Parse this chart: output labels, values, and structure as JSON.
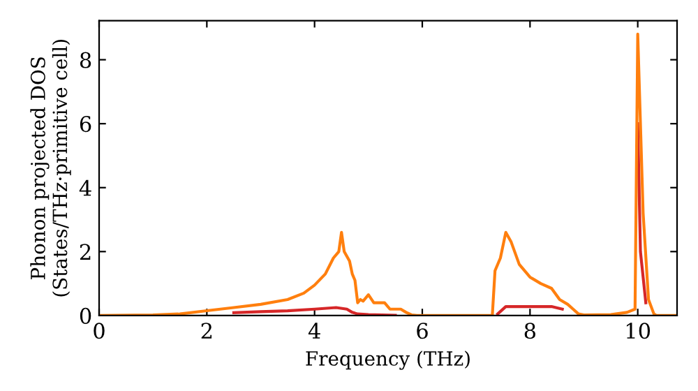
{
  "chart_data": {
    "type": "line",
    "xlabel": "Frequency (THz)",
    "ylabel": "Phonon projected DOS\n(States/THz·primitive cell)",
    "xlim": [
      0,
      10.73
    ],
    "ylim": [
      0,
      9.22
    ],
    "xticks": [
      0,
      2,
      4,
      6,
      8,
      10
    ],
    "yticks": [
      0,
      2,
      4,
      6,
      8
    ],
    "marker": "none",
    "line_style": "solid",
    "series": [
      {
        "color": "#d62728",
        "x": [
          2.5,
          3.0,
          3.5,
          4.0,
          4.4,
          4.6,
          4.7,
          4.8,
          5.0,
          5.5,
          6.5,
          7.4,
          7.55,
          8.4,
          8.6,
          9.5,
          10.0,
          10.05,
          10.15
        ],
        "values": [
          0.09,
          0.12,
          0.15,
          0.2,
          0.25,
          0.2,
          0.1,
          0.05,
          0.03,
          0.01,
          null,
          0.05,
          0.28,
          0.28,
          0.2,
          null,
          6.0,
          2.0,
          0.4
        ]
      },
      {
        "color": "#ff7f0e",
        "x": [
          0,
          1.0,
          1.5,
          2.0,
          2.5,
          3.0,
          3.5,
          3.8,
          4.0,
          4.2,
          4.35,
          4.45,
          4.5,
          4.55,
          4.65,
          4.7,
          4.75,
          4.8,
          4.85,
          4.9,
          5.0,
          5.1,
          5.3,
          5.4,
          5.6,
          5.7,
          5.8,
          5.9,
          7.3,
          7.35,
          7.45,
          7.55,
          7.65,
          7.8,
          8.0,
          8.2,
          8.4,
          8.55,
          8.7,
          8.8,
          8.9,
          9.0,
          9.5,
          9.8,
          9.95,
          10.0,
          10.1,
          10.2,
          10.3,
          10.35,
          10.73
        ],
        "values": [
          0,
          0.02,
          0.05,
          0.15,
          0.25,
          0.35,
          0.5,
          0.7,
          0.95,
          1.3,
          1.8,
          2.0,
          2.6,
          2.0,
          1.7,
          1.3,
          1.1,
          0.4,
          0.5,
          0.45,
          0.65,
          0.4,
          0.4,
          0.2,
          0.2,
          0.1,
          0.02,
          0,
          0,
          1.4,
          1.8,
          2.6,
          2.3,
          1.6,
          1.2,
          1.0,
          0.85,
          0.5,
          0.35,
          0.2,
          0.05,
          0.02,
          0.03,
          0.1,
          0.2,
          8.8,
          3.2,
          0.5,
          0.05,
          0,
          0
        ]
      }
    ]
  }
}
